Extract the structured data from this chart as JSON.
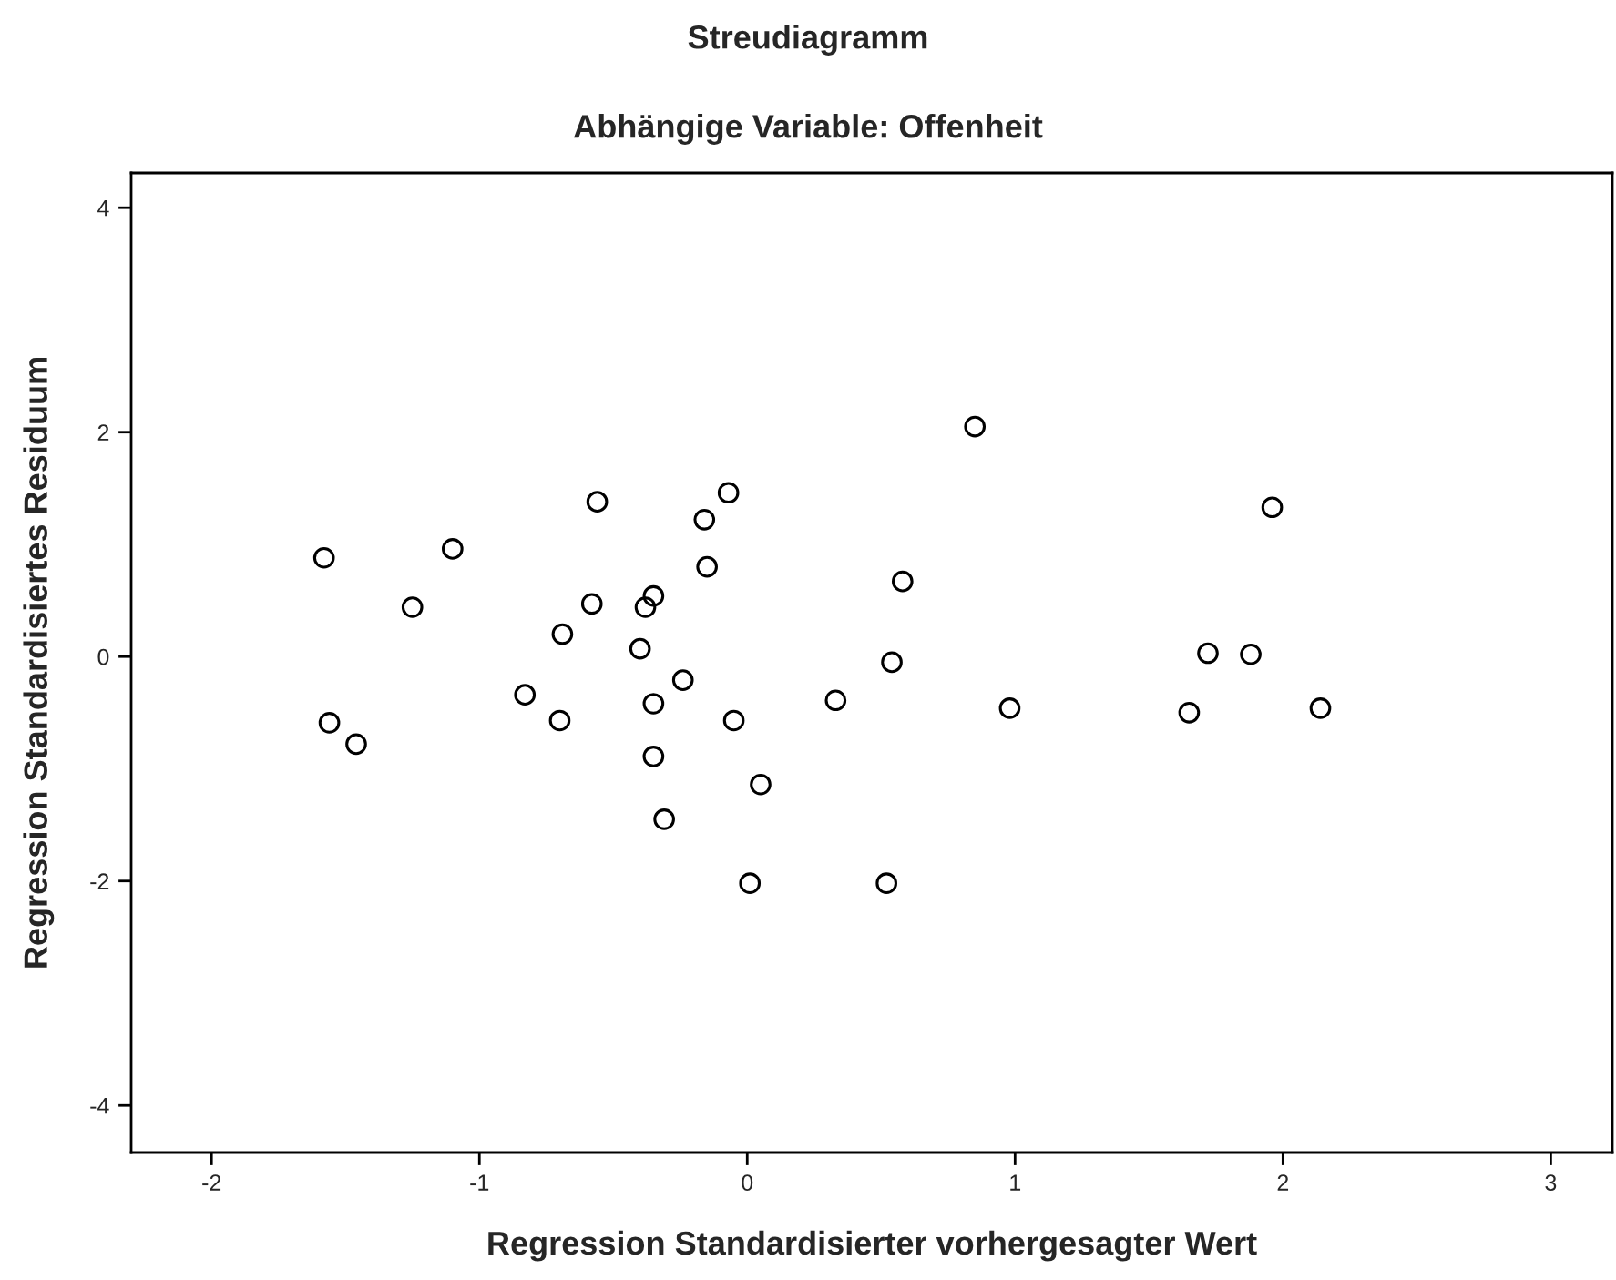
{
  "chart_data": {
    "type": "scatter",
    "title": "Streudiagramm",
    "subtitle": "Abhängige Variable: Offenheit",
    "xlabel": "Regression Standardisierter vorhergesagter Wert",
    "ylabel": "Regression Standardisiertes Residuum",
    "xlim": [
      -2.3,
      3.23
    ],
    "ylim": [
      -4.42,
      4.31
    ],
    "xticks": [
      -2,
      -1,
      0,
      1,
      2,
      3
    ],
    "yticks": [
      -4,
      -2,
      0,
      2,
      4
    ],
    "grid": false,
    "legend": false,
    "marker": "circle",
    "series": [
      {
        "color": "#000000",
        "x": [
          -1.58,
          -1.56,
          -1.46,
          -1.25,
          -1.1,
          -0.83,
          -0.7,
          -0.69,
          -0.58,
          -0.56,
          -0.4,
          -0.38,
          -0.35,
          -0.35,
          -0.35,
          -0.31,
          -0.24,
          -0.16,
          -0.15,
          -0.07,
          -0.05,
          0.01,
          0.05,
          0.33,
          0.52,
          0.54,
          0.58,
          0.85,
          0.98,
          1.65,
          1.72,
          1.88,
          1.96,
          2.14
        ],
        "values": [
          0.88,
          -0.59,
          -0.78,
          0.44,
          0.96,
          -0.34,
          -0.57,
          0.2,
          0.47,
          1.38,
          0.07,
          0.44,
          0.54,
          -0.42,
          -0.89,
          -1.45,
          -0.21,
          1.22,
          0.8,
          1.46,
          -0.57,
          -2.02,
          -1.14,
          -0.39,
          -2.02,
          -0.05,
          0.67,
          2.05,
          -0.46,
          -0.5,
          0.03,
          0.02,
          1.33,
          -0.46
        ]
      }
    ]
  }
}
